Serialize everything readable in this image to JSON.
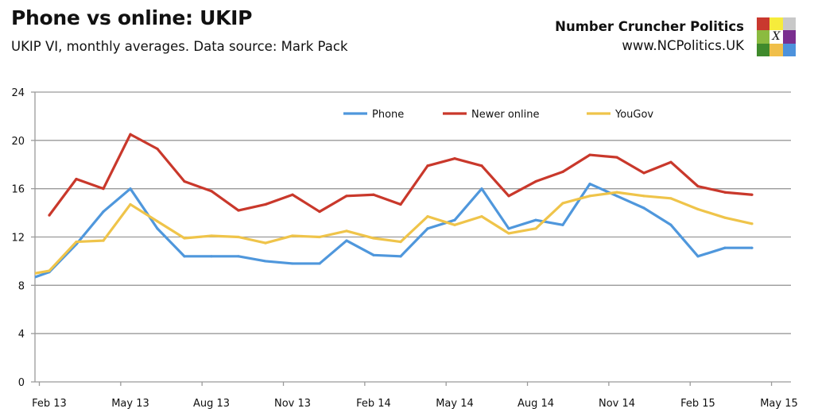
{
  "header": {
    "title": "Phone vs online: UKIP",
    "subtitle": "UKIP VI, monthly averages. Data source: Mark Pack",
    "brand": "Number Cruncher Politics",
    "brand_url": "www.NCPolitics.UK",
    "logo_mark": "X",
    "logo_colors": [
      "#c9382e",
      "#f6ec3b",
      "#c8c8c8",
      "#8bbb40",
      "#ffffff",
      "#7a2f8f",
      "#3f8a2c",
      "#f0bf4a",
      "#4d92dc"
    ]
  },
  "chart_data": {
    "type": "line",
    "title": "",
    "xlabel": "",
    "ylabel": "",
    "ylim": [
      0,
      24
    ],
    "yticks": [
      0,
      4,
      8,
      12,
      16,
      20,
      24
    ],
    "xticks": [
      "Feb 13",
      "May 13",
      "Aug 13",
      "Nov 13",
      "Feb 14",
      "May 14",
      "Aug 14",
      "Nov 14",
      "Feb 15",
      "May 15"
    ],
    "xlim": [
      "mid Jan 13",
      "mid Jun 15"
    ],
    "grid": "horizontal",
    "legend": "top",
    "x": [
      "Jan 13",
      "Feb 13",
      "Mar 13",
      "Apr 13",
      "May 13",
      "Jun 13",
      "Jul 13",
      "Aug 13",
      "Sep 13",
      "Oct 13",
      "Nov 13",
      "Dec 13",
      "Jan 14",
      "Feb 14",
      "Mar 14",
      "Apr 14",
      "May 14",
      "Jun 14",
      "Jul 14",
      "Aug 14",
      "Sep 14",
      "Oct 14",
      "Nov 14",
      "Dec 14",
      "Jan 15",
      "Feb 15",
      "Mar 15",
      "Apr 15"
    ],
    "series": [
      {
        "name": "Phone",
        "color": "#4f97dc",
        "values": [
          8.3,
          9.1,
          11.4,
          14.1,
          16.0,
          12.7,
          10.4,
          10.4,
          10.4,
          10.0,
          9.8,
          9.8,
          11.7,
          10.5,
          10.4,
          12.7,
          13.4,
          16.0,
          12.7,
          13.4,
          13.0,
          16.4,
          15.4,
          14.4,
          13.0,
          10.4,
          11.1,
          11.1
        ]
      },
      {
        "name": "Newer online",
        "color": "#c9382b",
        "values": [
          null,
          13.8,
          16.8,
          16.0,
          20.5,
          19.3,
          16.6,
          15.8,
          14.2,
          14.7,
          15.5,
          14.1,
          15.4,
          15.5,
          14.7,
          17.9,
          18.5,
          17.9,
          15.4,
          16.6,
          17.4,
          18.8,
          18.6,
          17.3,
          18.2,
          16.2,
          15.7,
          15.5
        ]
      },
      {
        "name": "YouGov",
        "color": "#efc44a",
        "values": [
          8.8,
          9.2,
          11.6,
          11.7,
          14.7,
          13.3,
          11.9,
          12.1,
          12.0,
          11.5,
          12.1,
          12.0,
          12.5,
          11.9,
          11.6,
          13.7,
          13.0,
          13.7,
          12.3,
          12.7,
          14.8,
          15.4,
          15.7,
          15.4,
          15.2,
          14.3,
          13.6,
          13.1
        ]
      }
    ]
  }
}
